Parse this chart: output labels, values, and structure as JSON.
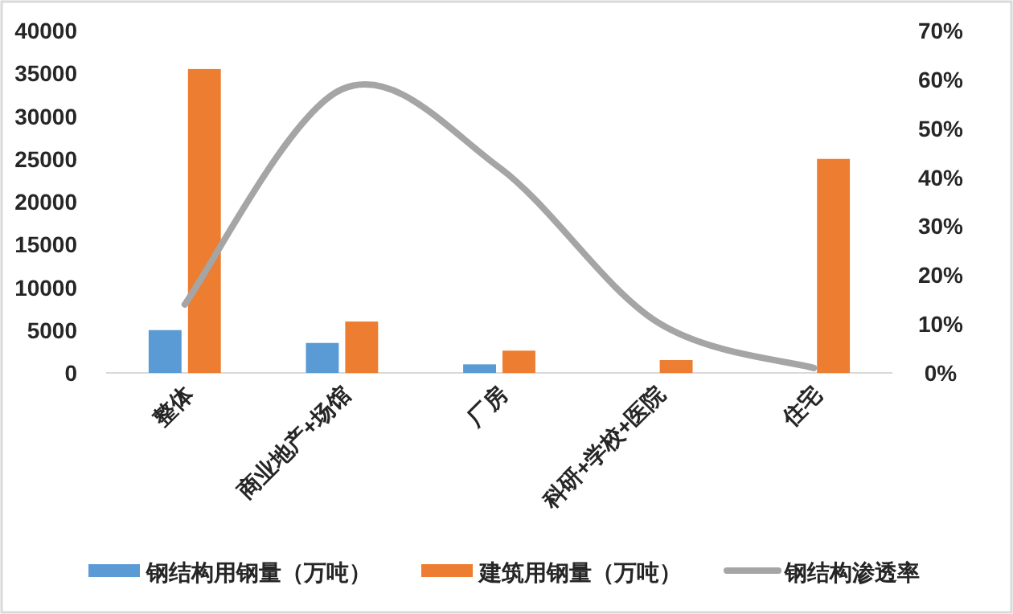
{
  "chart_data": {
    "type": "bar",
    "categories": [
      "整体",
      "商业地产+场馆",
      "厂房",
      "科研+学校+医院",
      "住宅"
    ],
    "series": [
      {
        "name": "钢结构用钢量（万吨）",
        "color": "#5b9bd5",
        "values": [
          5000,
          3500,
          1000,
          null,
          null
        ]
      },
      {
        "name": "建筑用钢量（万吨）",
        "color": "#ed7d31",
        "values": [
          35500,
          6000,
          2600,
          1500,
          25000
        ]
      },
      {
        "name": "钢结构渗透率",
        "type": "line",
        "axis": "y2",
        "color": "#a5a5a5",
        "values": [
          14,
          58,
          42,
          10.5,
          1
        ]
      }
    ],
    "ylim": [
      0,
      40000
    ],
    "yticks": [
      0,
      5000,
      10000,
      15000,
      20000,
      25000,
      30000,
      35000,
      40000
    ],
    "y2lim": [
      0,
      70
    ],
    "y2ticks": [
      {
        "value": 0,
        "label": "0%"
      },
      {
        "value": 10,
        "label": "10%"
      },
      {
        "value": 20,
        "label": "20%"
      },
      {
        "value": 30,
        "label": "30%"
      },
      {
        "value": 40,
        "label": "40%"
      },
      {
        "value": 50,
        "label": "50%"
      },
      {
        "value": 60,
        "label": "60%"
      },
      {
        "value": 70,
        "label": "70%"
      }
    ],
    "grid": false,
    "legend": "bottom"
  }
}
